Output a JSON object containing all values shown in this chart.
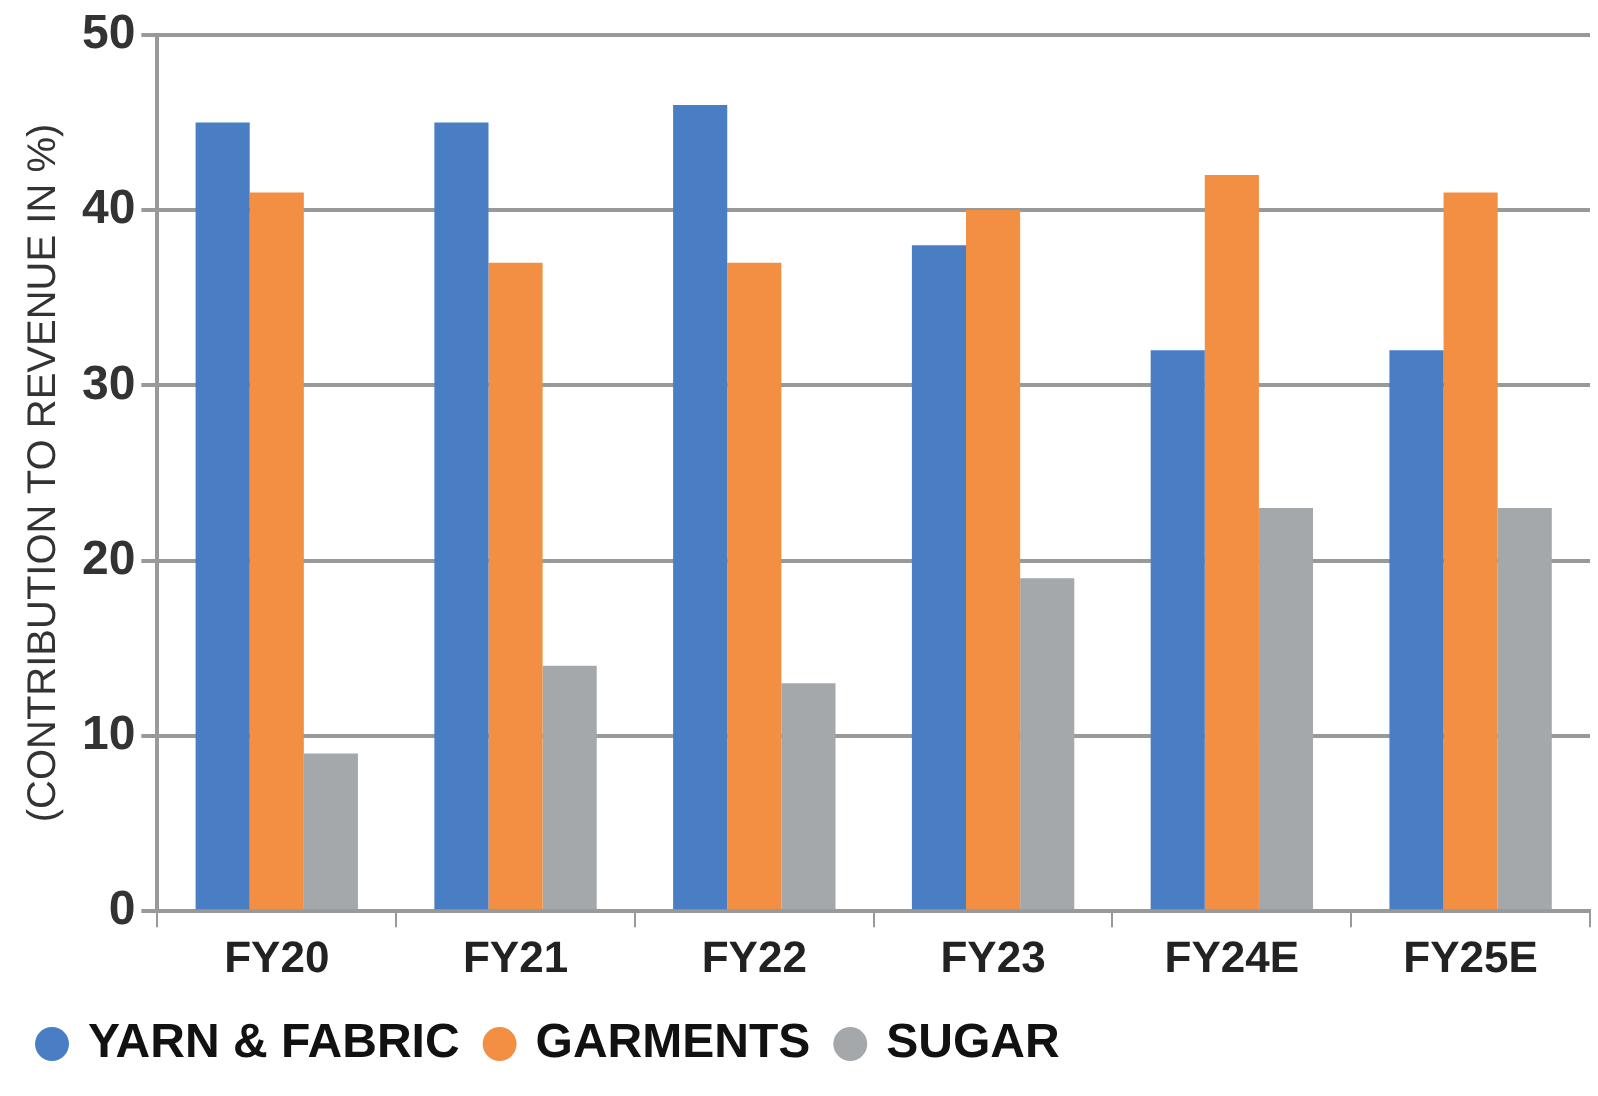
{
  "chart_data": {
    "type": "bar",
    "ylabel": "(CONTRIBUTION TO REVENUE IN %)",
    "categories": [
      "FY20",
      "FY21",
      "FY22",
      "FY23",
      "FY24E",
      "FY25E"
    ],
    "series": [
      {
        "name": "YARN & FABRIC",
        "color": "#4a7ec4",
        "values": [
          45,
          45,
          46,
          38,
          32,
          32
        ]
      },
      {
        "name": "GARMENTS",
        "color": "#f28f43",
        "values": [
          41,
          37,
          37,
          40,
          42,
          41
        ]
      },
      {
        "name": "SUGAR",
        "color": "#a5a8ab",
        "values": [
          9,
          14,
          13,
          19,
          23,
          23
        ]
      }
    ],
    "ylim": [
      0,
      50
    ],
    "yticks": [
      0,
      10,
      20,
      30,
      40,
      50
    ],
    "grid": "y",
    "legend": "bottom left"
  }
}
